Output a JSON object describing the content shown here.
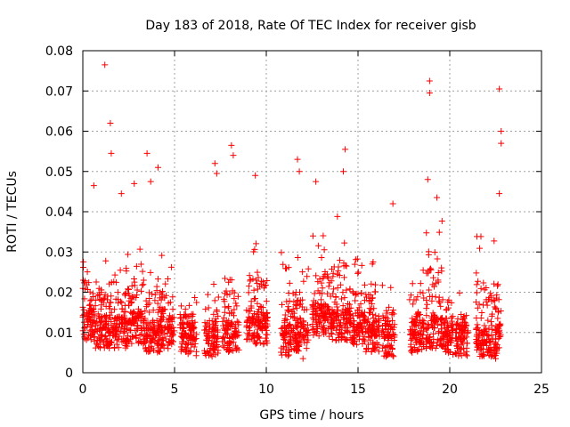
{
  "chart_data": {
    "type": "scatter",
    "title": "Day 183 of 2018, Rate Of TEC Index for receiver gisb",
    "xlabel": "GPS time / hours",
    "ylabel": "ROTI / TECUs",
    "xlim": [
      0,
      25
    ],
    "ylim": [
      0,
      0.08
    ],
    "x_ticks": [
      "0",
      "5",
      "10",
      "15",
      "20",
      "25"
    ],
    "y_ticks": [
      "0",
      "0.01",
      "0.02",
      "0.03",
      "0.04",
      "0.05",
      "0.06",
      "0.07",
      "0.08"
    ],
    "grid": true,
    "marker": "plus",
    "color": "#ff0000",
    "clusters": [
      {
        "t0": 0.0,
        "t1": 0.6,
        "base": 0.012,
        "top": 0.032
      },
      {
        "t0": 0.6,
        "t1": 1.2,
        "base": 0.01,
        "top": 0.03
      },
      {
        "t0": 1.2,
        "t1": 1.8,
        "base": 0.01,
        "top": 0.028
      },
      {
        "t0": 1.8,
        "t1": 2.6,
        "base": 0.01,
        "top": 0.03
      },
      {
        "t0": 2.6,
        "t1": 3.4,
        "base": 0.011,
        "top": 0.035
      },
      {
        "t0": 3.4,
        "t1": 4.2,
        "base": 0.009,
        "top": 0.03
      },
      {
        "t0": 4.2,
        "t1": 5.0,
        "base": 0.01,
        "top": 0.03
      },
      {
        "t0": 5.3,
        "t1": 6.2,
        "base": 0.008,
        "top": 0.02
      },
      {
        "t0": 6.6,
        "t1": 7.4,
        "base": 0.008,
        "top": 0.022
      },
      {
        "t0": 7.6,
        "t1": 8.5,
        "base": 0.009,
        "top": 0.03
      },
      {
        "t0": 8.9,
        "t1": 10.1,
        "base": 0.011,
        "top": 0.035
      },
      {
        "t0": 10.8,
        "t1": 11.6,
        "base": 0.008,
        "top": 0.03
      },
      {
        "t0": 11.6,
        "t1": 12.3,
        "base": 0.009,
        "top": 0.03
      },
      {
        "t0": 12.5,
        "t1": 13.5,
        "base": 0.013,
        "top": 0.035
      },
      {
        "t0": 13.5,
        "t1": 14.5,
        "base": 0.012,
        "top": 0.04
      },
      {
        "t0": 14.5,
        "t1": 15.4,
        "base": 0.011,
        "top": 0.03
      },
      {
        "t0": 15.4,
        "t1": 16.2,
        "base": 0.009,
        "top": 0.03
      },
      {
        "t0": 16.3,
        "t1": 17.0,
        "base": 0.008,
        "top": 0.022
      },
      {
        "t0": 17.8,
        "t1": 18.6,
        "base": 0.009,
        "top": 0.028
      },
      {
        "t0": 18.7,
        "t1": 19.6,
        "base": 0.01,
        "top": 0.04
      },
      {
        "t0": 19.6,
        "t1": 20.2,
        "base": 0.008,
        "top": 0.02
      },
      {
        "t0": 20.3,
        "t1": 21.0,
        "base": 0.008,
        "top": 0.02
      },
      {
        "t0": 21.4,
        "t1": 22.8,
        "base": 0.008,
        "top": 0.035
      }
    ],
    "outliers": [
      [
        1.2,
        0.0765
      ],
      [
        1.5,
        0.062
      ],
      [
        1.55,
        0.0545
      ],
      [
        0.6,
        0.0465
      ],
      [
        2.1,
        0.0445
      ],
      [
        2.8,
        0.047
      ],
      [
        3.5,
        0.0545
      ],
      [
        3.7,
        0.0475
      ],
      [
        4.1,
        0.051
      ],
      [
        7.2,
        0.052
      ],
      [
        7.3,
        0.0495
      ],
      [
        8.1,
        0.0565
      ],
      [
        8.2,
        0.054
      ],
      [
        9.4,
        0.049
      ],
      [
        11.7,
        0.053
      ],
      [
        11.8,
        0.05
      ],
      [
        12.7,
        0.0475
      ],
      [
        14.3,
        0.0555
      ],
      [
        14.2,
        0.05
      ],
      [
        16.9,
        0.042
      ],
      [
        18.9,
        0.0725
      ],
      [
        18.9,
        0.0695
      ],
      [
        18.8,
        0.048
      ],
      [
        22.7,
        0.0705
      ],
      [
        22.8,
        0.06
      ],
      [
        22.8,
        0.057
      ],
      [
        22.7,
        0.0445
      ],
      [
        19.3,
        0.0435
      ],
      [
        22.5,
        0.0035
      ],
      [
        12.0,
        0.0035
      ]
    ]
  }
}
